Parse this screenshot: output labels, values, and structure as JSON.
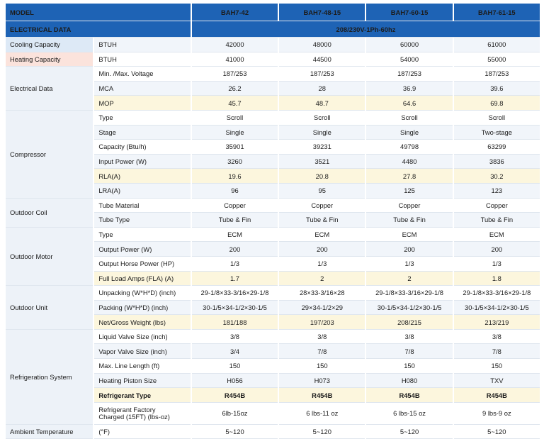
{
  "header": {
    "model_label": "MODEL",
    "models": [
      "BAH7-42",
      "BAH7-48-15",
      "BAH7-60-15",
      "BAH7-61-15"
    ],
    "electrical_label": "ELECTRICAL DATA",
    "power_supply": "208/230V-1Ph-60hz"
  },
  "categories": {
    "cooling": "Cooling Capacity",
    "heating": "Heating Capacity",
    "electrical": "Electrical Data",
    "compressor": "Compressor",
    "coil": "Outdoor Coil",
    "motor": "Outdoor Motor",
    "unit": "Outdoor Unit",
    "refrigeration": "Refrigeration System",
    "ambient": "Ambient Temperature"
  },
  "rows": {
    "cooling": {
      "label": "BTUH",
      "values": [
        "42000",
        "48000",
        "60000",
        "61000"
      ]
    },
    "heating": {
      "label": "BTUH",
      "values": [
        "41000",
        "44500",
        "54000",
        "55000"
      ]
    },
    "voltage": {
      "label": "Min. /Max. Voltage",
      "values": [
        "187/253",
        "187/253",
        "187/253",
        "187/253"
      ]
    },
    "mca": {
      "label": "MCA",
      "values": [
        "26.2",
        "28",
        "36.9",
        "39.6"
      ]
    },
    "mop": {
      "label": "MOP",
      "values": [
        "45.7",
        "48.7",
        "64.6",
        "69.8"
      ]
    },
    "comp_type": {
      "label": "Type",
      "values": [
        "Scroll",
        "Scroll",
        "Scroll",
        "Scroll"
      ]
    },
    "comp_stage": {
      "label": "Stage",
      "values": [
        "Single",
        "Single",
        "Single",
        "Two-stage"
      ]
    },
    "comp_capacity": {
      "label": "Capacity (Btu/h)",
      "values": [
        "35901",
        "39231",
        "49798",
        "63299"
      ]
    },
    "comp_power": {
      "label": "Input Power (W)",
      "values": [
        "3260",
        "3521",
        "4480",
        "3836"
      ]
    },
    "comp_rla": {
      "label": "RLA(A)",
      "values": [
        "19.6",
        "20.8",
        "27.8",
        "30.2"
      ]
    },
    "comp_lra": {
      "label": "LRA(A)",
      "values": [
        "96",
        "95",
        "125",
        "123"
      ]
    },
    "coil_material": {
      "label": "Tube Material",
      "values": [
        "Copper",
        "Copper",
        "Copper",
        "Copper"
      ]
    },
    "coil_type": {
      "label": "Tube Type",
      "values": [
        "Tube & Fin",
        "Tube & Fin",
        "Tube & Fin",
        "Tube & Fin"
      ]
    },
    "motor_type": {
      "label": "Type",
      "values": [
        "ECM",
        "ECM",
        "ECM",
        "ECM"
      ]
    },
    "motor_power": {
      "label": "Output Power (W)",
      "values": [
        "200",
        "200",
        "200",
        "200"
      ]
    },
    "motor_hp": {
      "label": "Output Horse Power (HP)",
      "values": [
        "1/3",
        "1/3",
        "1/3",
        "1/3"
      ]
    },
    "motor_fla": {
      "label": "Full Load Amps (FLA) (A)",
      "values": [
        "1.7",
        "2",
        "2",
        "1.8"
      ]
    },
    "unpacking": {
      "label": "Unpacking (W*H*D) (inch)",
      "values": [
        "29-1/8×33-3/16×29-1/8",
        "28×33-3/16×28",
        "29-1/8×33-3/16×29-1/8",
        "29-1/8×33-3/16×29-1/8"
      ]
    },
    "packing": {
      "label": "Packing (W*H*D) (inch)",
      "values": [
        "30-1/5×34-1/2×30-1/5",
        "29×34-1/2×29",
        "30-1/5×34-1/2×30-1/5",
        "30-1/5×34-1/2×30-1/5"
      ]
    },
    "weight": {
      "label": "Net/Gross Weight (lbs)",
      "values": [
        "181/188",
        "197/203",
        "208/215",
        "213/219"
      ]
    },
    "liquid_valve": {
      "label": "Liquid Valve Size (inch)",
      "values": [
        "3/8",
        "3/8",
        "3/8",
        "3/8"
      ]
    },
    "vapor_valve": {
      "label": "Vapor Valve Size (inch)",
      "values": [
        "3/4",
        "7/8",
        "7/8",
        "7/8"
      ]
    },
    "line_length": {
      "label": "Max. Line Length (ft)",
      "values": [
        "150",
        "150",
        "150",
        "150"
      ]
    },
    "piston": {
      "label": "Heating Piston Size",
      "values": [
        "H056",
        "H073",
        "H080",
        "TXV"
      ]
    },
    "refrigerant": {
      "label": "Refrigerant Type",
      "values": [
        "R454B",
        "R454B",
        "R454B",
        "R454B"
      ]
    },
    "charge": {
      "label_line1": "Refrigerant Factory",
      "label_line2": "Charged (15FT) (lbs-oz)",
      "values": [
        "6lb-15oz",
        "6 lbs-11 oz",
        "6 lbs-15 oz",
        "9 lbs-9 oz"
      ]
    },
    "ambient": {
      "label": "(°F)",
      "values": [
        "5~120",
        "5~120",
        "5~120",
        "5~120"
      ]
    }
  },
  "colors": {
    "header_blue": "#1e63b5",
    "cooling_tint": "#dde9f6",
    "heating_tint": "#fbe3dc",
    "highlight_yellow": "#fcf6dd",
    "band_blue": "#f1f5fa"
  }
}
